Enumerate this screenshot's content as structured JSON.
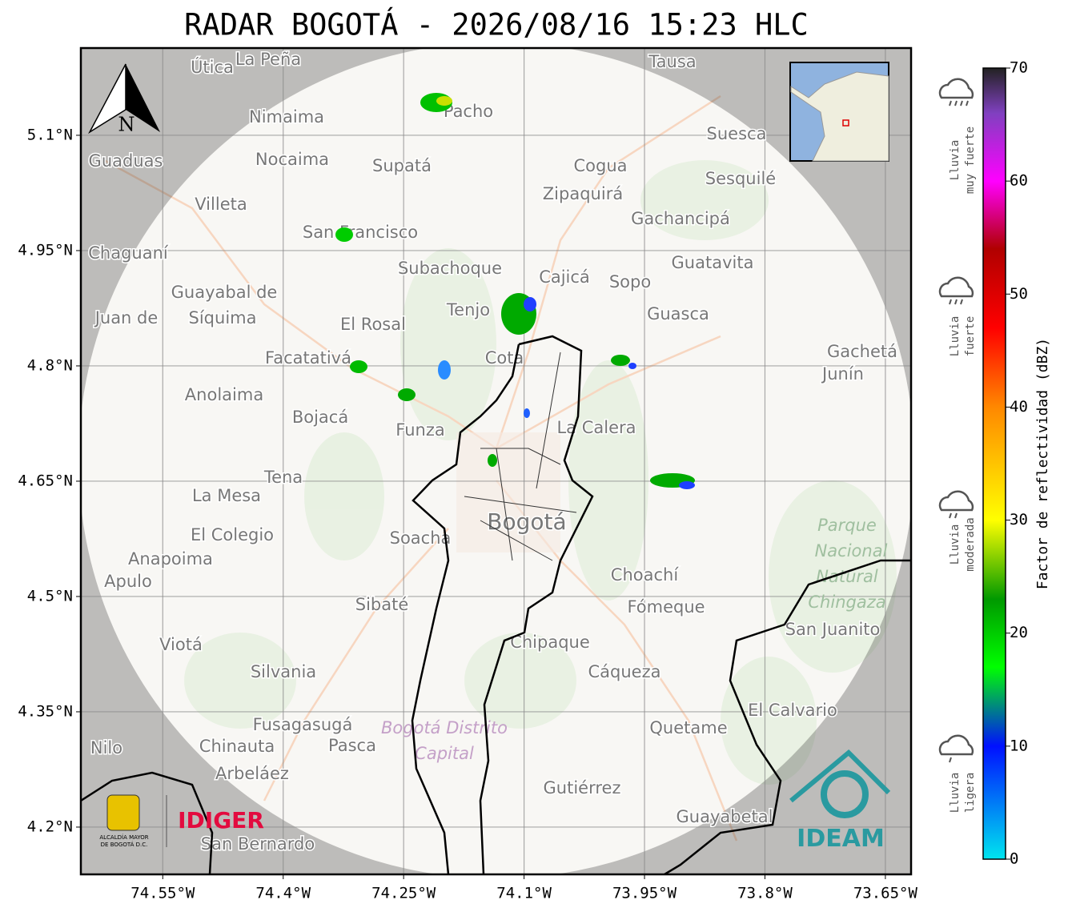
{
  "title": "RADAR BOGOTÁ - 2026/08/16 15:23 HLC",
  "map": {
    "xlim": [
      -74.652,
      -73.618
    ],
    "ylim": [
      4.1385,
      5.2135
    ],
    "lon_ticks": [
      {
        "value": -74.55,
        "label": "74.55°W"
      },
      {
        "value": -74.4,
        "label": "74.4°W"
      },
      {
        "value": -74.25,
        "label": "74.25°W"
      },
      {
        "value": -74.1,
        "label": "74.1°W"
      },
      {
        "value": -73.95,
        "label": "73.95°W"
      },
      {
        "value": -73.8,
        "label": "73.8°W"
      },
      {
        "value": -73.65,
        "label": "73.65°W"
      }
    ],
    "lat_ticks": [
      {
        "value": 4.2,
        "label": "4.2°N"
      },
      {
        "value": 4.35,
        "label": "4.35°N"
      },
      {
        "value": 4.5,
        "label": "4.5°N"
      },
      {
        "value": 4.65,
        "label": "4.65°N"
      },
      {
        "value": 4.8,
        "label": "4.8°N"
      },
      {
        "value": 4.95,
        "label": "4.95°N"
      },
      {
        "value": 5.1,
        "label": "5.1°N"
      }
    ],
    "north": "N",
    "places": [
      "Útica",
      "La Peña",
      "Tausa",
      "Nimaima",
      "Pacho",
      "Guaduas",
      "Nocaima",
      "Supatá",
      "Cogua",
      "Suesca",
      "Sesquilé",
      "Zipaquirá",
      "Villeta",
      "Gachancipá",
      "San Francisco",
      "Chaguaní",
      "Guatavita",
      "Subachoque",
      "Cajicá",
      "Sopo",
      "Guayabal de",
      "Síquima",
      "Juan de",
      "Tenjo",
      "Guasca",
      "El Rosal",
      "Facatativá",
      "Cota",
      "Gachetá",
      "Junín",
      "Anolaima",
      "Bojacá",
      "Funza",
      "La Calera",
      "Tena",
      "La Mesa",
      "Bogotá",
      "El Colegio",
      "Soacha",
      "Anapoima",
      "Apulo",
      "Choachí",
      "Sibaté",
      "Fómeque",
      "San Juanito",
      "Viotá",
      "Chipaque",
      "Silvania",
      "Cáqueza",
      "El Calvario",
      "Fusagasugá",
      "Quetame",
      "Nilo",
      "Chinauta",
      "Pasca",
      "Arbeláez",
      "Gutiérrez",
      "Guayabetal",
      "San Bernardo"
    ],
    "protected_areas": [
      "Parque",
      "Nacional",
      "Natural",
      "Chingaza",
      "Bogotá Distrito",
      "Capital"
    ]
  },
  "colorbar": {
    "label": "Factor de reflectividad (dBZ)",
    "clim": [
      0,
      70
    ],
    "ticks": [
      0,
      10,
      20,
      30,
      40,
      50,
      60,
      70
    ],
    "stops": [
      {
        "value": 0,
        "color": "#00e5ee"
      },
      {
        "value": 10,
        "color": "#0010ff"
      },
      {
        "value": 17,
        "color": "#00ff00"
      },
      {
        "value": 23,
        "color": "#009900"
      },
      {
        "value": 30,
        "color": "#ffff00"
      },
      {
        "value": 40,
        "color": "#ff8800"
      },
      {
        "value": 47,
        "color": "#ff0000"
      },
      {
        "value": 54,
        "color": "#b00000"
      },
      {
        "value": 60,
        "color": "#ff00ff"
      },
      {
        "value": 66,
        "color": "#8040c0"
      },
      {
        "value": 70,
        "color": "#222222"
      }
    ]
  },
  "rain_legend": [
    {
      "line1": "Lluvia",
      "line2": "muy fuerte"
    },
    {
      "line1": "Lluvia",
      "line2": "fuerte"
    },
    {
      "line1": "Lluvia",
      "line2": "moderada"
    },
    {
      "line1": "Lluvia",
      "line2": "ligera"
    }
  ],
  "logos": {
    "alcaldia_1": "ALCALDÍA MAYOR",
    "alcaldia_2": "DE BOGOTÁ D.C.",
    "idiger": "IDIGER",
    "ideam": "IDEAM"
  }
}
